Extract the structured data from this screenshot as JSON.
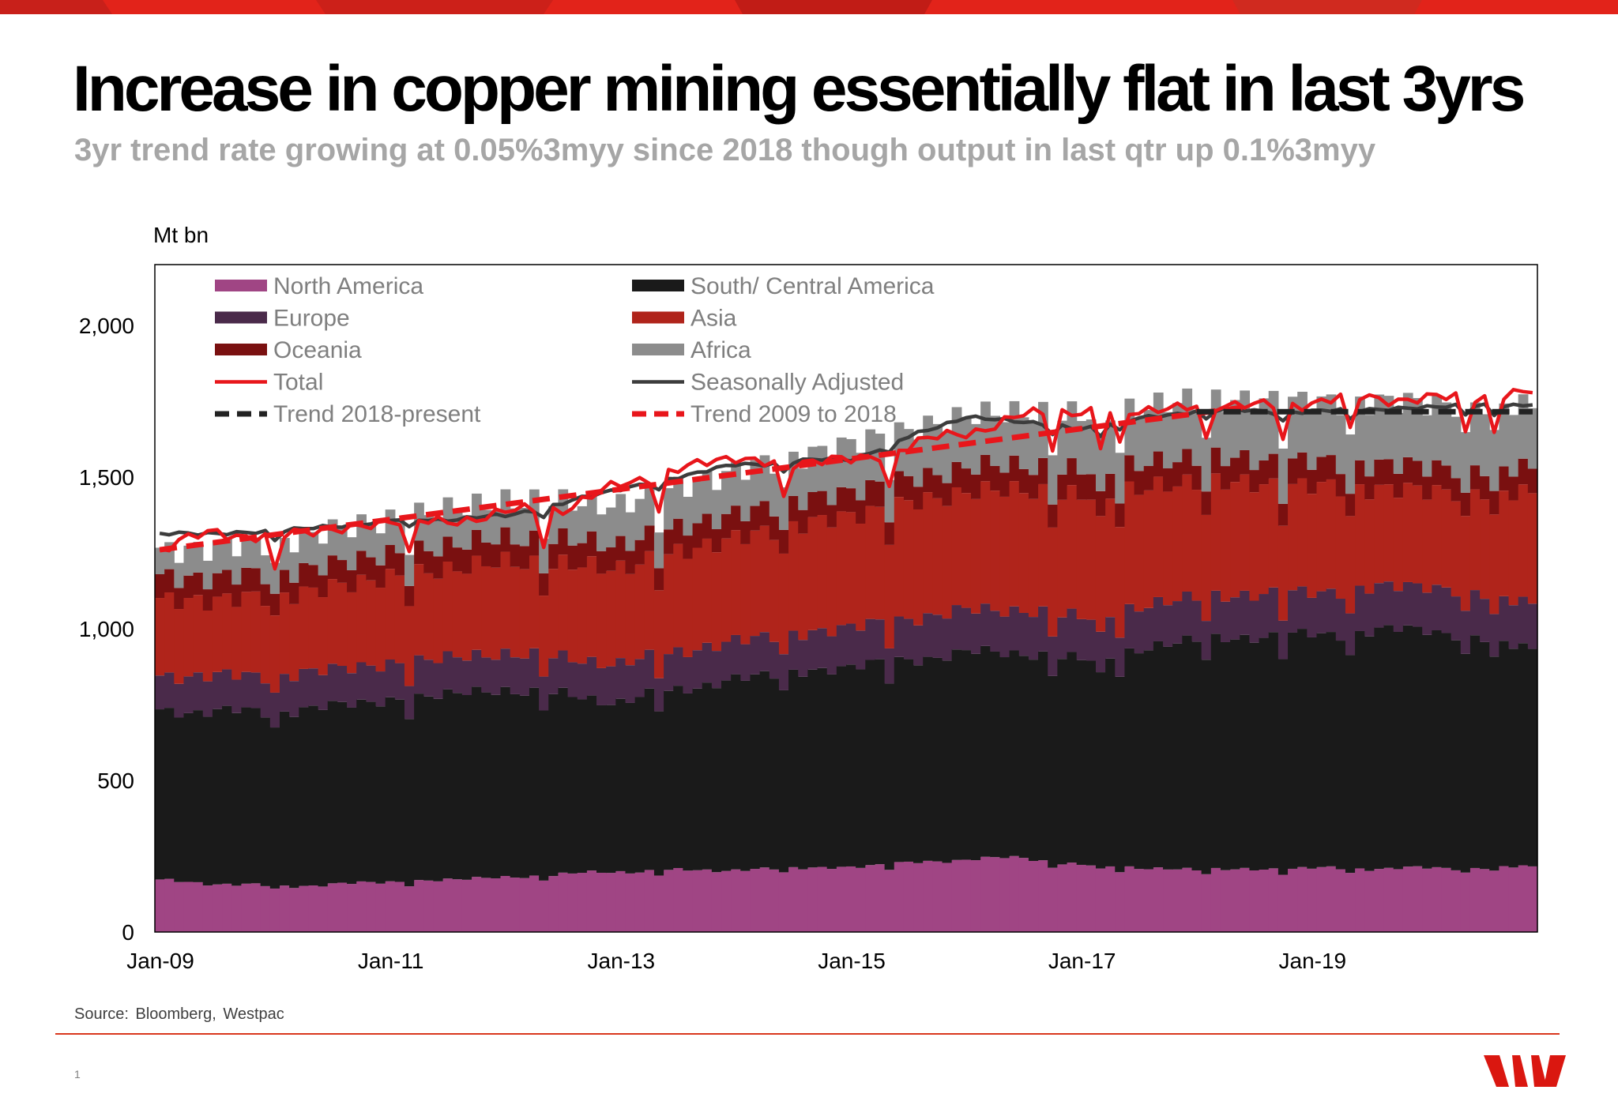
{
  "page": {
    "title": "Increase in copper mining essentially flat in last 3yrs",
    "subtitle": "3yr trend rate growing at 0.05%3myy since 2018 though output in last qtr up 0.1%3myy",
    "source": "Source: Bloomberg, Westpac",
    "page_number": "1"
  },
  "colors": {
    "brand_red": "#da1710",
    "north_america": "#a04584",
    "south_central_america": "#1a1a1a",
    "europe": "#4a2a4a",
    "asia": "#b0241b",
    "oceania": "#7a1010",
    "africa": "#8c8c8c",
    "total": "#e8161b",
    "seasonally_adjusted": "#3c3c3c",
    "trend_2018": "#222222",
    "trend_2009": "#e8161b"
  },
  "chart_data": {
    "type": "area",
    "title": "",
    "ylabel": "Mt bn",
    "xlabel": "",
    "ylim": [
      0,
      2200
    ],
    "yticks": [
      0,
      500,
      1000,
      1500,
      2000
    ],
    "ytick_labels": [
      "0",
      "500",
      "1,000",
      "1,500",
      "2,000"
    ],
    "x_start": "Jan-09",
    "x_end": "Dec-20",
    "xtick_labels": [
      "Jan-09",
      "Jan-11",
      "Jan-13",
      "Jan-15",
      "Jan-17",
      "Jan-19"
    ],
    "xtick_months": [
      0,
      24,
      48,
      72,
      96,
      120
    ],
    "months": 144,
    "legend": [
      {
        "key": "north_america",
        "label": "North America",
        "type": "area"
      },
      {
        "key": "south_central_america",
        "label": "South/ Central America",
        "type": "area"
      },
      {
        "key": "europe",
        "label": "Europe",
        "type": "area"
      },
      {
        "key": "asia",
        "label": "Asia",
        "type": "area"
      },
      {
        "key": "oceania",
        "label": "Oceania",
        "type": "area"
      },
      {
        "key": "africa",
        "label": "Africa",
        "type": "area"
      },
      {
        "key": "total",
        "label": "Total",
        "type": "line"
      },
      {
        "key": "seasonally_adjusted",
        "label": "Seasonally Adjusted",
        "type": "line"
      },
      {
        "key": "trend_2018",
        "label": "Trend 2018-present",
        "type": "dash"
      },
      {
        "key": "trend_2009",
        "label": "Trend 2009 to 2018",
        "type": "dash"
      }
    ],
    "series_anchors": {
      "north_america": [
        [
          0,
          170
        ],
        [
          12,
          150
        ],
        [
          24,
          165
        ],
        [
          36,
          180
        ],
        [
          48,
          200
        ],
        [
          60,
          205
        ],
        [
          72,
          215
        ],
        [
          84,
          240
        ],
        [
          90,
          245
        ],
        [
          96,
          220
        ],
        [
          108,
          205
        ],
        [
          120,
          210
        ],
        [
          132,
          210
        ],
        [
          143,
          215
        ]
      ],
      "south_central_america": [
        [
          0,
          560
        ],
        [
          12,
          575
        ],
        [
          24,
          600
        ],
        [
          36,
          620
        ],
        [
          48,
          560
        ],
        [
          60,
          630
        ],
        [
          72,
          660
        ],
        [
          84,
          680
        ],
        [
          96,
          675
        ],
        [
          108,
          760
        ],
        [
          120,
          770
        ],
        [
          132,
          790
        ],
        [
          143,
          720
        ]
      ],
      "europe": [
        [
          0,
          115
        ],
        [
          12,
          120
        ],
        [
          24,
          120
        ],
        [
          36,
          120
        ],
        [
          48,
          125
        ],
        [
          60,
          125
        ],
        [
          72,
          130
        ],
        [
          84,
          140
        ],
        [
          96,
          140
        ],
        [
          108,
          140
        ],
        [
          120,
          140
        ],
        [
          132,
          145
        ],
        [
          143,
          150
        ]
      ],
      "asia": [
        [
          0,
          245
        ],
        [
          12,
          260
        ],
        [
          24,
          285
        ],
        [
          36,
          300
        ],
        [
          48,
          315
        ],
        [
          60,
          340
        ],
        [
          72,
          370
        ],
        [
          84,
          390
        ],
        [
          96,
          400
        ],
        [
          108,
          380
        ],
        [
          120,
          350
        ],
        [
          132,
          310
        ],
        [
          143,
          365
        ]
      ],
      "oceania": [
        [
          0,
          75
        ],
        [
          12,
          75
        ],
        [
          24,
          75
        ],
        [
          36,
          80
        ],
        [
          48,
          80
        ],
        [
          60,
          80
        ],
        [
          72,
          80
        ],
        [
          84,
          80
        ],
        [
          96,
          85
        ],
        [
          108,
          80
        ],
        [
          120,
          80
        ],
        [
          132,
          80
        ],
        [
          143,
          80
        ]
      ],
      "africa": [
        [
          0,
          90
        ],
        [
          12,
          105
        ],
        [
          24,
          115
        ],
        [
          36,
          120
        ],
        [
          48,
          130
        ],
        [
          60,
          140
        ],
        [
          72,
          155
        ],
        [
          84,
          170
        ],
        [
          96,
          180
        ],
        [
          108,
          190
        ],
        [
          120,
          200
        ],
        [
          132,
          210
        ],
        [
          143,
          205
        ]
      ]
    },
    "dip_months": [
      12,
      26,
      40,
      52,
      65,
      76,
      93,
      98,
      100,
      109,
      117,
      124,
      136,
      139
    ],
    "dip_depth": 0.93,
    "total_anchors": [
      [
        0,
        1260
      ],
      [
        6,
        1320
      ],
      [
        12,
        1300
      ],
      [
        18,
        1330
      ],
      [
        24,
        1350
      ],
      [
        30,
        1355
      ],
      [
        36,
        1380
      ],
      [
        42,
        1400
      ],
      [
        48,
        1470
      ],
      [
        54,
        1530
      ],
      [
        60,
        1560
      ],
      [
        66,
        1545
      ],
      [
        72,
        1555
      ],
      [
        78,
        1600
      ],
      [
        84,
        1650
      ],
      [
        90,
        1700
      ],
      [
        96,
        1720
      ],
      [
        102,
        1710
      ],
      [
        108,
        1740
      ],
      [
        114,
        1730
      ],
      [
        120,
        1750
      ],
      [
        126,
        1760
      ],
      [
        132,
        1760
      ],
      [
        138,
        1760
      ],
      [
        143,
        1790
      ]
    ],
    "sa_anchors": [
      [
        0,
        1310
      ],
      [
        12,
        1320
      ],
      [
        24,
        1355
      ],
      [
        36,
        1370
      ],
      [
        48,
        1460
      ],
      [
        60,
        1540
      ],
      [
        72,
        1560
      ],
      [
        84,
        1700
      ],
      [
        96,
        1660
      ],
      [
        108,
        1720
      ],
      [
        120,
        1715
      ],
      [
        132,
        1730
      ],
      [
        143,
        1740
      ]
    ],
    "trend_2009": [
      [
        0,
        1260
      ],
      [
        113,
        1730
      ]
    ],
    "trend_2018": [
      [
        108,
        1715
      ],
      [
        143,
        1715
      ]
    ]
  }
}
